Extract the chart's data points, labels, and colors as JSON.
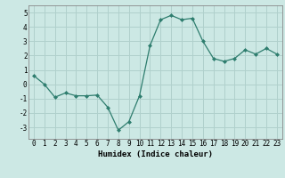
{
  "x": [
    0,
    1,
    2,
    3,
    4,
    5,
    6,
    7,
    8,
    9,
    10,
    11,
    12,
    13,
    14,
    15,
    16,
    17,
    18,
    19,
    20,
    21,
    22,
    23
  ],
  "y": [
    0.6,
    0.0,
    -0.9,
    -0.6,
    -0.8,
    -0.8,
    -0.75,
    -1.6,
    -3.2,
    -2.6,
    -0.8,
    2.7,
    4.5,
    4.8,
    4.5,
    4.6,
    3.0,
    1.8,
    1.6,
    1.8,
    2.4,
    2.1,
    2.5,
    2.1
  ],
  "line_color": "#2e7d6e",
  "marker": "D",
  "marker_size": 2,
  "bg_color": "#cce8e4",
  "grid_color": "#b0d0cc",
  "xlabel": "Humidex (Indice chaleur)",
  "xlim": [
    -0.5,
    23.5
  ],
  "ylim": [
    -3.8,
    5.5
  ],
  "xticks": [
    0,
    1,
    2,
    3,
    4,
    5,
    6,
    7,
    8,
    9,
    10,
    11,
    12,
    13,
    14,
    15,
    16,
    17,
    18,
    19,
    20,
    21,
    22,
    23
  ],
  "yticks": [
    -3,
    -2,
    -1,
    0,
    1,
    2,
    3,
    4,
    5
  ],
  "axis_label_fontsize": 6.5,
  "tick_fontsize": 5.5
}
